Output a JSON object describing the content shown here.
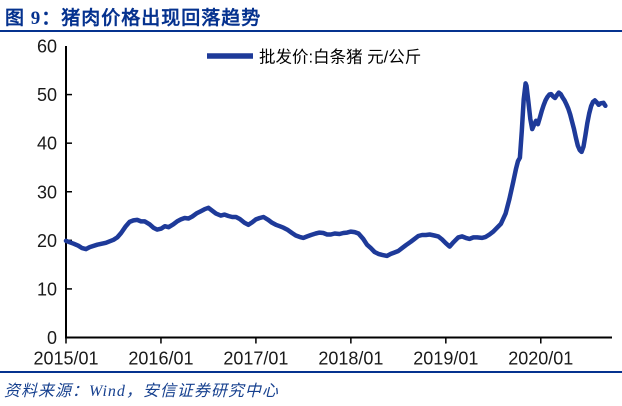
{
  "header": {
    "title": "图 9：猪肉价格出现回落趋势"
  },
  "footer": {
    "source": "资料来源：Wind，安信证券研究中心"
  },
  "colors": {
    "accent": "#05328F",
    "line": "#1E3A99",
    "axis": "#000000",
    "tick_label": "#1a1a1a",
    "footer_text": "#16408F"
  },
  "chart_data": {
    "type": "line",
    "title": "图 9：猪肉价格出现回落趋势",
    "xlabel": "",
    "ylabel": "",
    "grid": false,
    "legend": {
      "label": "批发价:白条猪 元/公斤",
      "position": "top-center"
    },
    "ylim": [
      0,
      60
    ],
    "y_ticks": [
      0,
      10,
      20,
      30,
      40,
      50,
      60
    ],
    "xlim": [
      2015.0,
      2020.75
    ],
    "x_ticks": [
      {
        "label": "2015/01",
        "t": 2015.0
      },
      {
        "label": "2016/01",
        "t": 2016.0
      },
      {
        "label": "2017/01",
        "t": 2017.0
      },
      {
        "label": "2018/01",
        "t": 2018.0
      },
      {
        "label": "2019/01",
        "t": 2019.0
      },
      {
        "label": "2020/01",
        "t": 2020.0
      }
    ],
    "series": [
      {
        "name": "批发价:白条猪 元/公斤",
        "color": "#1E3A99",
        "points": [
          [
            2015.0,
            19.9
          ],
          [
            2015.04,
            19.6
          ],
          [
            2015.08,
            19.3
          ],
          [
            2015.13,
            18.9
          ],
          [
            2015.17,
            18.4
          ],
          [
            2015.21,
            18.2
          ],
          [
            2015.25,
            18.6
          ],
          [
            2015.33,
            19.1
          ],
          [
            2015.42,
            19.5
          ],
          [
            2015.5,
            20.1
          ],
          [
            2015.54,
            20.6
          ],
          [
            2015.58,
            21.5
          ],
          [
            2015.63,
            22.9
          ],
          [
            2015.67,
            23.8
          ],
          [
            2015.71,
            24.1
          ],
          [
            2015.75,
            24.2
          ],
          [
            2015.79,
            23.9
          ],
          [
            2015.83,
            23.9
          ],
          [
            2015.88,
            23.3
          ],
          [
            2015.92,
            22.6
          ],
          [
            2015.96,
            22.2
          ],
          [
            2016.0,
            22.4
          ],
          [
            2016.04,
            22.9
          ],
          [
            2016.08,
            22.7
          ],
          [
            2016.13,
            23.3
          ],
          [
            2016.17,
            23.9
          ],
          [
            2016.21,
            24.3
          ],
          [
            2016.25,
            24.6
          ],
          [
            2016.29,
            24.5
          ],
          [
            2016.33,
            24.9
          ],
          [
            2016.38,
            25.6
          ],
          [
            2016.42,
            26.0
          ],
          [
            2016.46,
            26.4
          ],
          [
            2016.5,
            26.7
          ],
          [
            2016.54,
            26.1
          ],
          [
            2016.58,
            25.5
          ],
          [
            2016.63,
            25.1
          ],
          [
            2016.67,
            25.3
          ],
          [
            2016.71,
            25.0
          ],
          [
            2016.75,
            24.8
          ],
          [
            2016.79,
            24.8
          ],
          [
            2016.83,
            24.4
          ],
          [
            2016.88,
            23.6
          ],
          [
            2016.92,
            23.2
          ],
          [
            2016.96,
            23.7
          ],
          [
            2017.0,
            24.3
          ],
          [
            2017.04,
            24.6
          ],
          [
            2017.08,
            24.8
          ],
          [
            2017.13,
            24.2
          ],
          [
            2017.17,
            23.6
          ],
          [
            2017.21,
            23.2
          ],
          [
            2017.25,
            22.9
          ],
          [
            2017.29,
            22.6
          ],
          [
            2017.33,
            22.2
          ],
          [
            2017.38,
            21.5
          ],
          [
            2017.42,
            21.0
          ],
          [
            2017.46,
            20.7
          ],
          [
            2017.5,
            20.5
          ],
          [
            2017.54,
            20.8
          ],
          [
            2017.58,
            21.1
          ],
          [
            2017.63,
            21.4
          ],
          [
            2017.67,
            21.6
          ],
          [
            2017.71,
            21.5
          ],
          [
            2017.75,
            21.2
          ],
          [
            2017.79,
            21.2
          ],
          [
            2017.83,
            21.4
          ],
          [
            2017.88,
            21.3
          ],
          [
            2017.92,
            21.5
          ],
          [
            2017.96,
            21.6
          ],
          [
            2018.0,
            21.8
          ],
          [
            2018.04,
            21.7
          ],
          [
            2018.08,
            21.4
          ],
          [
            2018.13,
            20.3
          ],
          [
            2018.17,
            19.1
          ],
          [
            2018.21,
            18.4
          ],
          [
            2018.25,
            17.6
          ],
          [
            2018.29,
            17.2
          ],
          [
            2018.33,
            17.0
          ],
          [
            2018.38,
            16.8
          ],
          [
            2018.42,
            17.2
          ],
          [
            2018.46,
            17.5
          ],
          [
            2018.5,
            17.8
          ],
          [
            2018.54,
            18.4
          ],
          [
            2018.58,
            19.0
          ],
          [
            2018.63,
            19.7
          ],
          [
            2018.67,
            20.3
          ],
          [
            2018.71,
            20.9
          ],
          [
            2018.75,
            21.1
          ],
          [
            2018.79,
            21.1
          ],
          [
            2018.83,
            21.2
          ],
          [
            2018.88,
            21.0
          ],
          [
            2018.92,
            20.8
          ],
          [
            2018.96,
            20.2
          ],
          [
            2019.0,
            19.4
          ],
          [
            2019.04,
            18.7
          ],
          [
            2019.08,
            19.6
          ],
          [
            2019.13,
            20.6
          ],
          [
            2019.17,
            20.8
          ],
          [
            2019.21,
            20.5
          ],
          [
            2019.25,
            20.3
          ],
          [
            2019.29,
            20.6
          ],
          [
            2019.33,
            20.6
          ],
          [
            2019.38,
            20.5
          ],
          [
            2019.42,
            20.7
          ],
          [
            2019.46,
            21.2
          ],
          [
            2019.5,
            21.8
          ],
          [
            2019.54,
            22.6
          ],
          [
            2019.58,
            23.4
          ],
          [
            2019.63,
            25.5
          ],
          [
            2019.67,
            28.5
          ],
          [
            2019.71,
            32.0
          ],
          [
            2019.74,
            34.8
          ],
          [
            2019.76,
            36.3
          ],
          [
            2019.78,
            37.0
          ],
          [
            2019.8,
            42.5
          ],
          [
            2019.82,
            49.0
          ],
          [
            2019.84,
            52.3
          ],
          [
            2019.85,
            51.8
          ],
          [
            2019.87,
            48.5
          ],
          [
            2019.89,
            45.0
          ],
          [
            2019.91,
            42.9
          ],
          [
            2019.93,
            43.8
          ],
          [
            2019.95,
            44.6
          ],
          [
            2019.97,
            43.9
          ],
          [
            2019.99,
            45.2
          ],
          [
            2020.01,
            46.6
          ],
          [
            2020.03,
            47.8
          ],
          [
            2020.05,
            48.8
          ],
          [
            2020.07,
            49.5
          ],
          [
            2020.09,
            50.0
          ],
          [
            2020.11,
            50.1
          ],
          [
            2020.13,
            49.6
          ],
          [
            2020.15,
            49.3
          ],
          [
            2020.17,
            49.9
          ],
          [
            2020.19,
            50.4
          ],
          [
            2020.21,
            50.1
          ],
          [
            2020.23,
            49.4
          ],
          [
            2020.25,
            48.8
          ],
          [
            2020.27,
            48.0
          ],
          [
            2020.29,
            47.1
          ],
          [
            2020.31,
            45.9
          ],
          [
            2020.33,
            44.4
          ],
          [
            2020.35,
            42.9
          ],
          [
            2020.37,
            41.1
          ],
          [
            2020.39,
            39.5
          ],
          [
            2020.41,
            38.6
          ],
          [
            2020.43,
            38.2
          ],
          [
            2020.45,
            39.3
          ],
          [
            2020.47,
            41.6
          ],
          [
            2020.49,
            44.1
          ],
          [
            2020.51,
            46.1
          ],
          [
            2020.53,
            47.6
          ],
          [
            2020.55,
            48.5
          ],
          [
            2020.57,
            48.8
          ],
          [
            2020.59,
            48.4
          ],
          [
            2020.61,
            47.9
          ],
          [
            2020.63,
            48.2
          ],
          [
            2020.66,
            48.3
          ],
          [
            2020.68,
            47.7
          ]
        ]
      }
    ]
  }
}
